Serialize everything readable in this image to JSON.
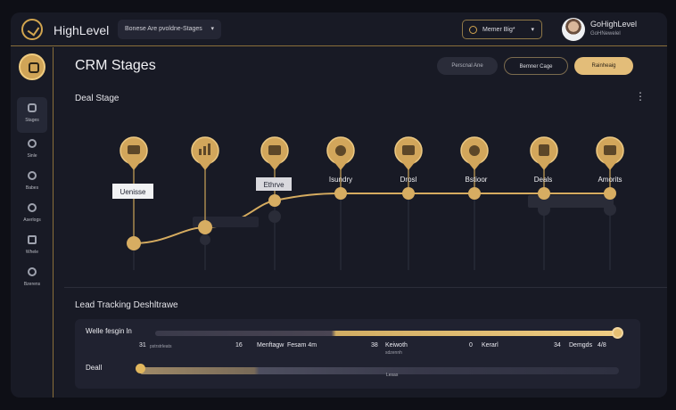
{
  "app": {
    "brand": "HighLevel",
    "pipeline_select": "Bonese Are pvoldne-Stages",
    "account_select": "Memer Big*",
    "user_name": "GoHighLevel",
    "user_sub": "GoHNewelel"
  },
  "sidebar": {
    "items": [
      {
        "label": "Stages",
        "icon": "chart-icon"
      },
      {
        "label": "Sinle",
        "icon": "gear-icon"
      },
      {
        "label": "Babes",
        "icon": "shield-icon"
      },
      {
        "label": "Aserlogs",
        "icon": "user-icon"
      },
      {
        "label": "Whele",
        "icon": "warning-icon"
      },
      {
        "label": "Bzerens",
        "icon": "play-icon"
      }
    ]
  },
  "header": {
    "title": "CRM Stages",
    "buttons": [
      "Perscnal Ane",
      "Bemner Cage",
      "Rainheaig"
    ]
  },
  "deal_section": {
    "title": "Deal Stage",
    "stages": [
      {
        "label": "Uenisse",
        "icon": "card-icon"
      },
      {
        "label": "",
        "icon": "bar-chart-icon"
      },
      {
        "label": "Ethrve",
        "icon": "bag-icon"
      },
      {
        "label": "Isundry",
        "icon": "target-icon"
      },
      {
        "label": "Drosl",
        "icon": "building-icon"
      },
      {
        "label": "Bstioor",
        "icon": "globe-icon"
      },
      {
        "label": "Deals",
        "icon": "device-icon"
      },
      {
        "label": "Amorits",
        "icon": "image-icon"
      }
    ]
  },
  "lead_section": {
    "title": "Lead Tracking Deshltrawe",
    "track_label": "Welle fesgin ln",
    "metrics": [
      {
        "value": "31",
        "label": "pstrstrleats"
      },
      {
        "value": "16",
        "label": "Menftagw"
      },
      {
        "value": "",
        "label": "Fesam 4m"
      },
      {
        "value": "38",
        "label": "Keiwoth"
      },
      {
        "value": "",
        "label": "sdzennh"
      },
      {
        "value": "0",
        "label": "Kerarl"
      },
      {
        "value": "34",
        "label": "Demgds"
      },
      {
        "value": "",
        "label": "4/8"
      }
    ],
    "deal_label": "Deall",
    "deal_mini": "Lesas"
  },
  "colors": {
    "accent": "#d6ac60",
    "bg": "#181a25",
    "panel": "#202230"
  }
}
